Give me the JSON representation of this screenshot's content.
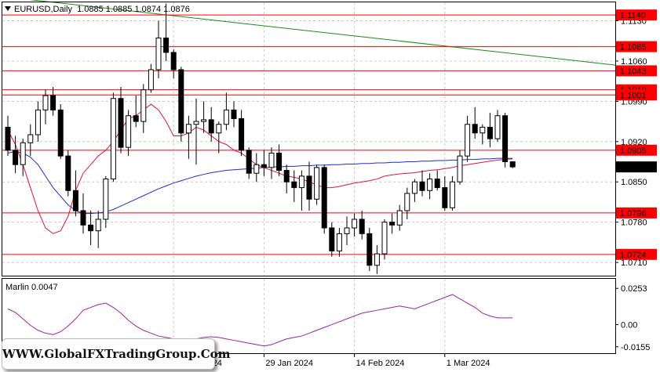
{
  "header": {
    "symbol_line": "EURUSD,Daily  1.0885 1.0885 1.0874 1.0876"
  },
  "indicator": {
    "label": "Marlin 0.0047",
    "ticks": [
      "0.0253",
      "0.00",
      "-0.0155"
    ],
    "color": "#a020a0"
  },
  "watermark": "WWW.GlobalFXTradingGroup.Com",
  "colors": {
    "bull": "#ffffff",
    "bear": "#000000",
    "level": "#ff0000",
    "ma_fast": "#dc143c",
    "ma_slow": "#1f2ecc",
    "trend": "#1a8a1a",
    "price_box": "#000000",
    "level_box": "#ff0000"
  },
  "chart_data": {
    "type": "candlestick",
    "symbol": "EURUSD",
    "timeframe": "Daily",
    "last_ohlc": [
      1.0885,
      1.0885,
      1.0874,
      1.0876
    ],
    "current_price": "1.0876",
    "y_ticks": [
      "1.1130",
      "1.1060",
      "1.0990",
      "1.0920",
      "1.0850",
      "1.0780",
      "1.0710"
    ],
    "x_ticks": [
      {
        "label": "11 Jan 2024",
        "index": 22
      },
      {
        "label": "29 Jan 2024",
        "index": 34
      },
      {
        "label": "14 Feb 2024",
        "index": 46
      },
      {
        "label": "1 Mar 2024",
        "index": 58
      }
    ],
    "levels": [
      "1.1140",
      "1.1085",
      "1.1043",
      "1.1010",
      "1.1001",
      "1.0905",
      "1.0796",
      "1.0724"
    ],
    "candles": [
      [
        1.0945,
        1.0965,
        1.0895,
        1.0905
      ],
      [
        1.0905,
        1.093,
        1.0865,
        1.088
      ],
      [
        1.088,
        1.0925,
        1.086,
        1.0918
      ],
      [
        1.0918,
        1.095,
        1.0895,
        1.0932
      ],
      [
        1.0932,
        1.099,
        1.092,
        1.0975
      ],
      [
        1.0975,
        1.101,
        1.095,
        1.1
      ],
      [
        1.1,
        1.1015,
        1.0965,
        1.0975
      ],
      [
        1.0975,
        1.0985,
        1.089,
        1.0895
      ],
      [
        1.0895,
        1.0905,
        1.0825,
        1.0835
      ],
      [
        1.0835,
        1.087,
        1.079,
        1.08
      ],
      [
        1.08,
        1.083,
        1.076,
        1.0775
      ],
      [
        1.0775,
        1.08,
        1.074,
        1.0765
      ],
      [
        1.0765,
        1.08,
        1.0735,
        1.0785
      ],
      [
        1.0785,
        1.086,
        1.077,
        1.0855
      ],
      [
        1.0855,
        1.1005,
        1.085,
        1.0995
      ],
      [
        1.0995,
        1.1015,
        1.09,
        1.091
      ],
      [
        1.091,
        1.0975,
        1.0895,
        1.0965
      ],
      [
        1.0965,
        1.1,
        1.0945,
        1.0955
      ],
      [
        1.0955,
        1.102,
        1.0935,
        1.101
      ],
      [
        1.101,
        1.1055,
        1.1005,
        1.1045
      ],
      [
        1.1045,
        1.113,
        1.103,
        1.11
      ],
      [
        1.11,
        1.116,
        1.106,
        1.1075
      ],
      [
        1.1075,
        1.108,
        1.103,
        1.1045
      ],
      [
        1.1045,
        1.105,
        1.092,
        1.0935
      ],
      [
        1.0935,
        1.0965,
        1.089,
        1.095
      ],
      [
        1.095,
        1.0995,
        1.088,
        1.0955
      ],
      [
        1.0955,
        1.099,
        1.0935,
        1.0958
      ],
      [
        1.0958,
        1.098,
        1.092,
        1.0935
      ],
      [
        1.0935,
        1.0955,
        1.09,
        1.095
      ],
      [
        1.095,
        1.1005,
        1.094,
        1.0975
      ],
      [
        1.0975,
        1.099,
        1.0945,
        1.096
      ],
      [
        1.096,
        1.0975,
        1.0895,
        1.0905
      ],
      [
        1.0905,
        1.091,
        1.0855,
        1.0865
      ],
      [
        1.0865,
        1.09,
        1.085,
        1.088
      ],
      [
        1.088,
        1.0905,
        1.086,
        1.0875
      ],
      [
        1.0875,
        1.091,
        1.0855,
        1.09
      ],
      [
        1.09,
        1.0915,
        1.086,
        1.087
      ],
      [
        1.087,
        1.088,
        1.083,
        1.085
      ],
      [
        1.085,
        1.087,
        1.0815,
        1.084
      ],
      [
        1.084,
        1.087,
        1.08,
        1.086
      ],
      [
        1.086,
        1.0885,
        1.08,
        1.082
      ],
      [
        1.082,
        1.088,
        1.081,
        1.0875
      ],
      [
        1.0875,
        1.088,
        1.076,
        1.077
      ],
      [
        1.077,
        1.078,
        1.072,
        1.073
      ],
      [
        1.073,
        1.077,
        1.072,
        1.076
      ],
      [
        1.076,
        1.079,
        1.074,
        1.077
      ],
      [
        1.077,
        1.0795,
        1.0755,
        1.0785
      ],
      [
        1.0785,
        1.08,
        1.075,
        1.076
      ],
      [
        1.076,
        1.077,
        1.0695,
        1.0705
      ],
      [
        1.0705,
        1.074,
        1.069,
        1.0725
      ],
      [
        1.0725,
        1.0785,
        1.0715,
        1.078
      ],
      [
        1.078,
        1.0795,
        1.076,
        1.0775
      ],
      [
        1.0775,
        1.081,
        1.0765,
        1.08
      ],
      [
        1.08,
        1.084,
        1.0785,
        1.083
      ],
      [
        1.083,
        1.0855,
        1.0815,
        1.085
      ],
      [
        1.085,
        1.087,
        1.0825,
        1.0835
      ],
      [
        1.0835,
        1.0865,
        1.082,
        1.0855
      ],
      [
        1.0855,
        1.087,
        1.0835,
        1.084
      ],
      [
        1.084,
        1.086,
        1.08,
        1.0805
      ],
      [
        1.0805,
        1.086,
        1.08,
        1.085
      ],
      [
        1.085,
        1.0905,
        1.0845,
        1.0895
      ],
      [
        1.0895,
        1.0965,
        1.0885,
        1.095
      ],
      [
        1.095,
        1.098,
        1.0925,
        1.0935
      ],
      [
        1.0935,
        1.095,
        1.0915,
        1.0945
      ],
      [
        1.0945,
        1.097,
        1.091,
        1.0925
      ],
      [
        1.0925,
        1.0975,
        1.092,
        1.0965
      ],
      [
        1.0965,
        1.097,
        1.0875,
        1.0885
      ],
      [
        1.0885,
        1.0885,
        1.0874,
        1.0876
      ]
    ],
    "ma_fast": [
      1.094,
      1.0915,
      1.088,
      1.084,
      1.08,
      1.077,
      1.076,
      1.0765,
      1.079,
      1.0835,
      1.0865,
      1.088,
      1.0895,
      1.0905,
      1.092,
      1.094,
      1.096,
      1.0965,
      1.0975,
      1.0985,
      1.0975,
      1.0955,
      1.093,
      1.093,
      1.0935,
      1.0945,
      1.094,
      1.093,
      1.092,
      1.0915,
      1.0905,
      1.09,
      1.089,
      1.088,
      1.0875,
      1.087,
      1.0865,
      1.086,
      1.0858,
      1.0855,
      1.085,
      1.0845,
      1.084,
      1.084,
      1.0842,
      1.0845,
      1.0848,
      1.085,
      1.0852,
      1.0855,
      1.086,
      1.0862,
      1.0864,
      1.0865,
      1.0866,
      1.0868,
      1.087,
      1.0871,
      1.0873,
      1.0875,
      1.0878,
      1.088,
      1.0882,
      1.0884,
      1.0886,
      1.0888,
      1.0889,
      1.089
    ],
    "ma_slow": [
      1.09,
      1.0903,
      1.09,
      1.0893,
      1.088,
      1.086,
      1.084,
      1.0825,
      1.081,
      1.08,
      1.0795,
      1.0795,
      1.0796,
      1.0798,
      1.0802,
      1.0808,
      1.0814,
      1.082,
      1.0826,
      1.0832,
      1.0838,
      1.0843,
      1.0848,
      1.0852,
      1.0856,
      1.086,
      1.0863,
      1.0866,
      1.0868,
      1.087,
      1.0871,
      1.0872,
      1.0873,
      1.0874,
      1.0875,
      1.0876,
      1.0876,
      1.0877,
      1.0877,
      1.0878,
      1.0878,
      1.0879,
      1.0879,
      1.088,
      1.088,
      1.0881,
      1.0881,
      1.0882,
      1.0882,
      1.0883,
      1.0883,
      1.0884,
      1.0884,
      1.0885,
      1.0885,
      1.0886,
      1.0886,
      1.0887,
      1.0887,
      1.0888,
      1.0888,
      1.0889,
      1.0889,
      1.089,
      1.089,
      1.0891,
      1.0891,
      1.0891
    ],
    "indicator_values": [
      0.011,
      0.0085,
      0.004,
      -0.0005,
      -0.004,
      -0.006,
      -0.007,
      -0.005,
      -0.001,
      0.004,
      0.01,
      0.012,
      0.014,
      0.015,
      0.012,
      0.008,
      0.003,
      -0.001,
      -0.004,
      -0.006,
      -0.008,
      -0.009,
      -0.01,
      -0.011,
      -0.0115,
      -0.01,
      -0.009,
      -0.0085,
      -0.009,
      -0.01,
      -0.011,
      -0.012,
      -0.013,
      -0.014,
      -0.015,
      -0.014,
      -0.012,
      -0.01,
      -0.009,
      -0.008,
      -0.006,
      -0.004,
      -0.002,
      0.0,
      0.002,
      0.004,
      0.006,
      0.008,
      0.009,
      0.01,
      0.011,
      0.012,
      0.013,
      0.012,
      0.011,
      0.013,
      0.015,
      0.017,
      0.019,
      0.021,
      0.018,
      0.015,
      0.012,
      0.008,
      0.006,
      0.0047,
      0.0047,
      0.0047
    ]
  }
}
